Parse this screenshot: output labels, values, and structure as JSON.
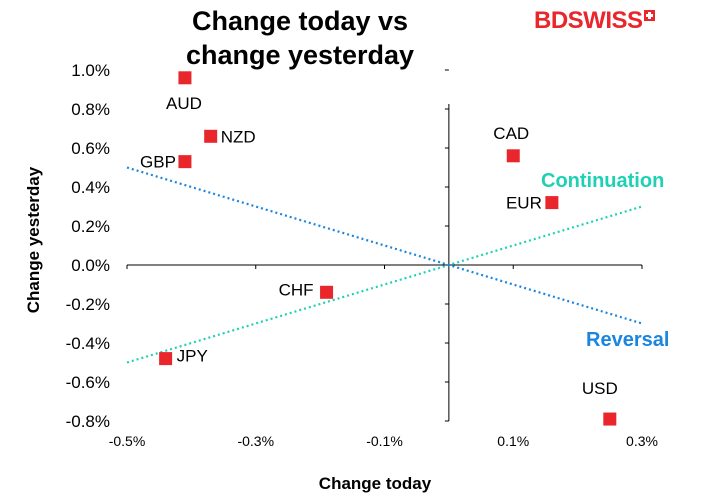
{
  "title_line1": "Change today vs",
  "title_line2": "change yesterday",
  "logo": {
    "part1": "BD",
    "part2": "SWISS"
  },
  "chart_data": {
    "type": "scatter",
    "title": "Change today vs change yesterday",
    "xlabel": "Change today",
    "ylabel": "Change yesterday",
    "xlim": [
      -0.5,
      0.3
    ],
    "ylim": [
      -0.8,
      1.0
    ],
    "xticks": [
      -0.5,
      -0.3,
      -0.1,
      0.1,
      0.3
    ],
    "xtick_labels": [
      "-0.5%",
      "-0.3%",
      "-0.1%",
      "0.1%",
      "0.3%"
    ],
    "yticks": [
      1.0,
      0.8,
      0.6,
      0.4,
      0.2,
      0.0,
      -0.2,
      -0.4,
      -0.6,
      -0.8
    ],
    "ytick_labels": [
      "1.0%",
      "0.8%",
      "0.6%",
      "0.4%",
      "0.2%",
      "0.0%",
      "-0.2%",
      "-0.4%",
      "-0.6%",
      "-0.8%"
    ],
    "grid": false,
    "marker_color": "#e8262b",
    "points": [
      {
        "label": "AUD",
        "x": -0.41,
        "y": 0.96
      },
      {
        "label": "NZD",
        "x": -0.37,
        "y": 0.66
      },
      {
        "label": "GBP",
        "x": -0.41,
        "y": 0.53
      },
      {
        "label": "CAD",
        "x": 0.1,
        "y": 0.56
      },
      {
        "label": "EUR",
        "x": 0.16,
        "y": 0.32
      },
      {
        "label": "CHF",
        "x": -0.19,
        "y": -0.14
      },
      {
        "label": "JPY",
        "x": -0.44,
        "y": -0.48
      },
      {
        "label": "USD",
        "x": 0.25,
        "y": -0.79
      }
    ],
    "lines": [
      {
        "name": "Continuation",
        "color": "#1fd1b4",
        "x": [
          -0.5,
          0.3
        ],
        "y": [
          -0.5,
          0.3
        ]
      },
      {
        "name": "Reversal",
        "color": "#1a86e0",
        "x": [
          -0.5,
          0.3
        ],
        "y": [
          0.5,
          -0.3
        ]
      }
    ],
    "annotations": [
      {
        "text": "Continuation",
        "color": "#1fd1b4"
      },
      {
        "text": "Reversal",
        "color": "#1a86e0"
      }
    ]
  }
}
